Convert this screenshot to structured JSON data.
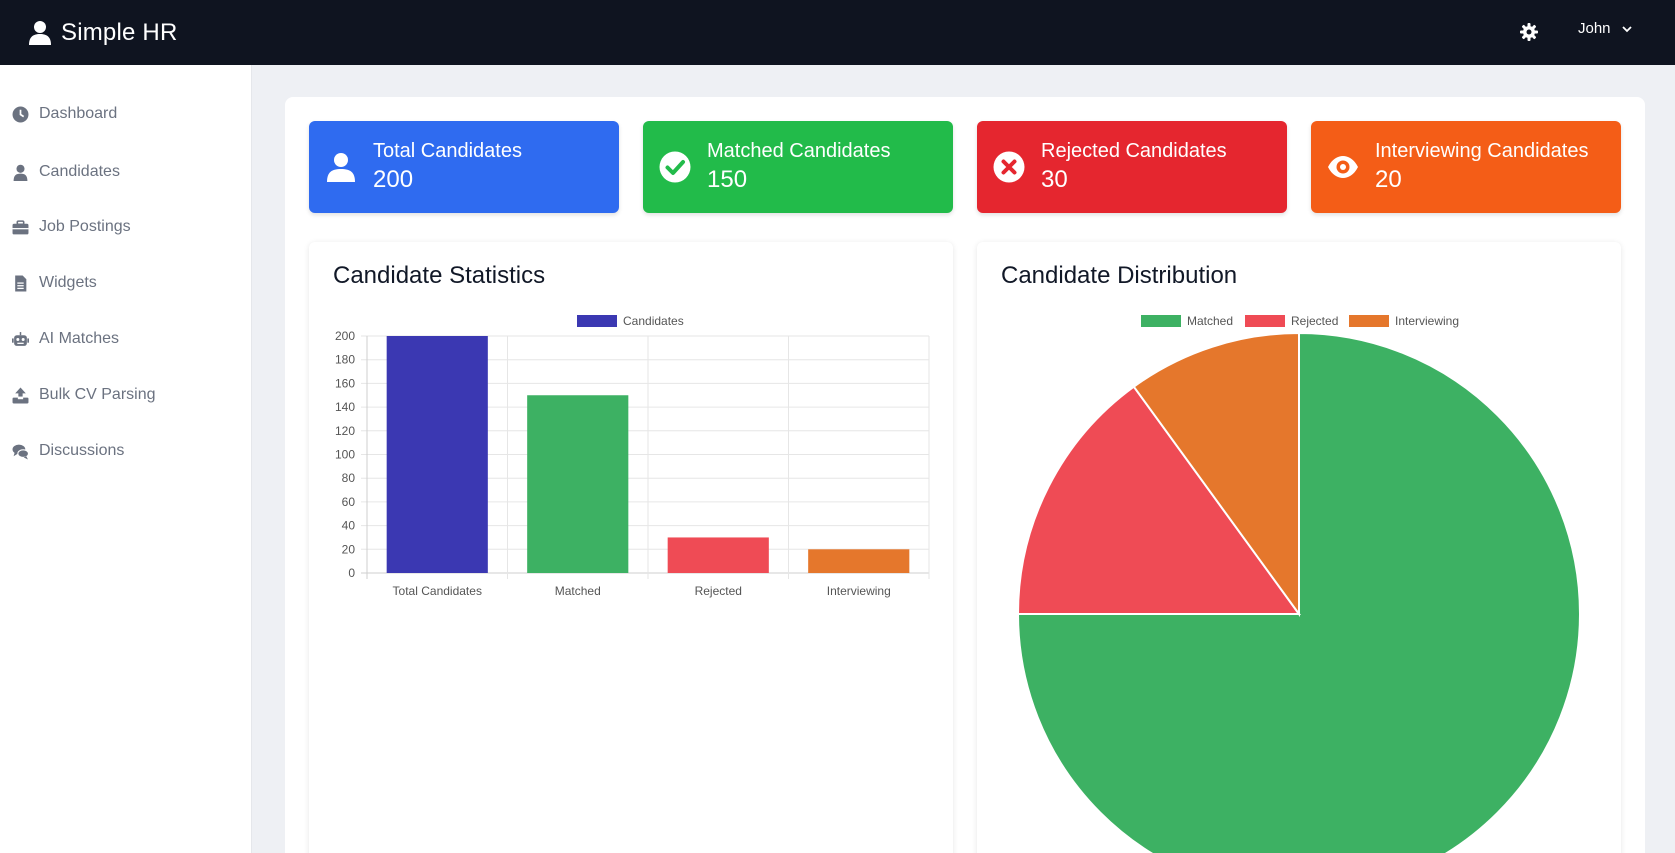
{
  "app": {
    "title": "Simple HR",
    "user_name": "John"
  },
  "sidebar": {
    "items": [
      {
        "label": "Dashboard",
        "icon": "clock-icon"
      },
      {
        "label": "Candidates",
        "icon": "user-icon"
      },
      {
        "label": "Job Postings",
        "icon": "briefcase-icon"
      },
      {
        "label": "Widgets",
        "icon": "file-icon"
      },
      {
        "label": "AI Matches",
        "icon": "robot-icon"
      },
      {
        "label": "Bulk CV Parsing",
        "icon": "upload-icon"
      },
      {
        "label": "Discussions",
        "icon": "comments-icon"
      }
    ]
  },
  "stats": [
    {
      "label": "Total Candidates",
      "value": "200",
      "color": "#2f6bf0",
      "icon": "user-icon"
    },
    {
      "label": "Matched Candidates",
      "value": "150",
      "color": "#22bb4a",
      "icon": "check-circle-icon"
    },
    {
      "label": "Rejected Candidates",
      "value": "30",
      "color": "#e5262f",
      "icon": "x-circle-icon"
    },
    {
      "label": "Interviewing Candidates",
      "value": "20",
      "color": "#f45d17",
      "icon": "eye-icon"
    }
  ],
  "cards": {
    "statistics_title": "Candidate Statistics",
    "distribution_title": "Candidate Distribution"
  },
  "chart_data": [
    {
      "type": "bar",
      "title": "Candidate Statistics",
      "legend": [
        "Candidates"
      ],
      "categories": [
        "Total Candidates",
        "Matched",
        "Rejected",
        "Interviewing"
      ],
      "values": [
        200,
        150,
        30,
        20
      ],
      "colors": [
        "#3b38b2",
        "#3db163",
        "#ef4b55",
        "#e5772c"
      ],
      "legend_color": "#3b38b2",
      "ylim": [
        0,
        200
      ],
      "yticks": [
        0,
        20,
        40,
        60,
        80,
        100,
        120,
        140,
        160,
        180,
        200
      ],
      "grid": true
    },
    {
      "type": "pie",
      "title": "Candidate Distribution",
      "labels": [
        "Matched",
        "Rejected",
        "Interviewing"
      ],
      "values": [
        150,
        30,
        20
      ],
      "colors": [
        "#3db163",
        "#ef4b55",
        "#e5772c"
      ]
    }
  ]
}
